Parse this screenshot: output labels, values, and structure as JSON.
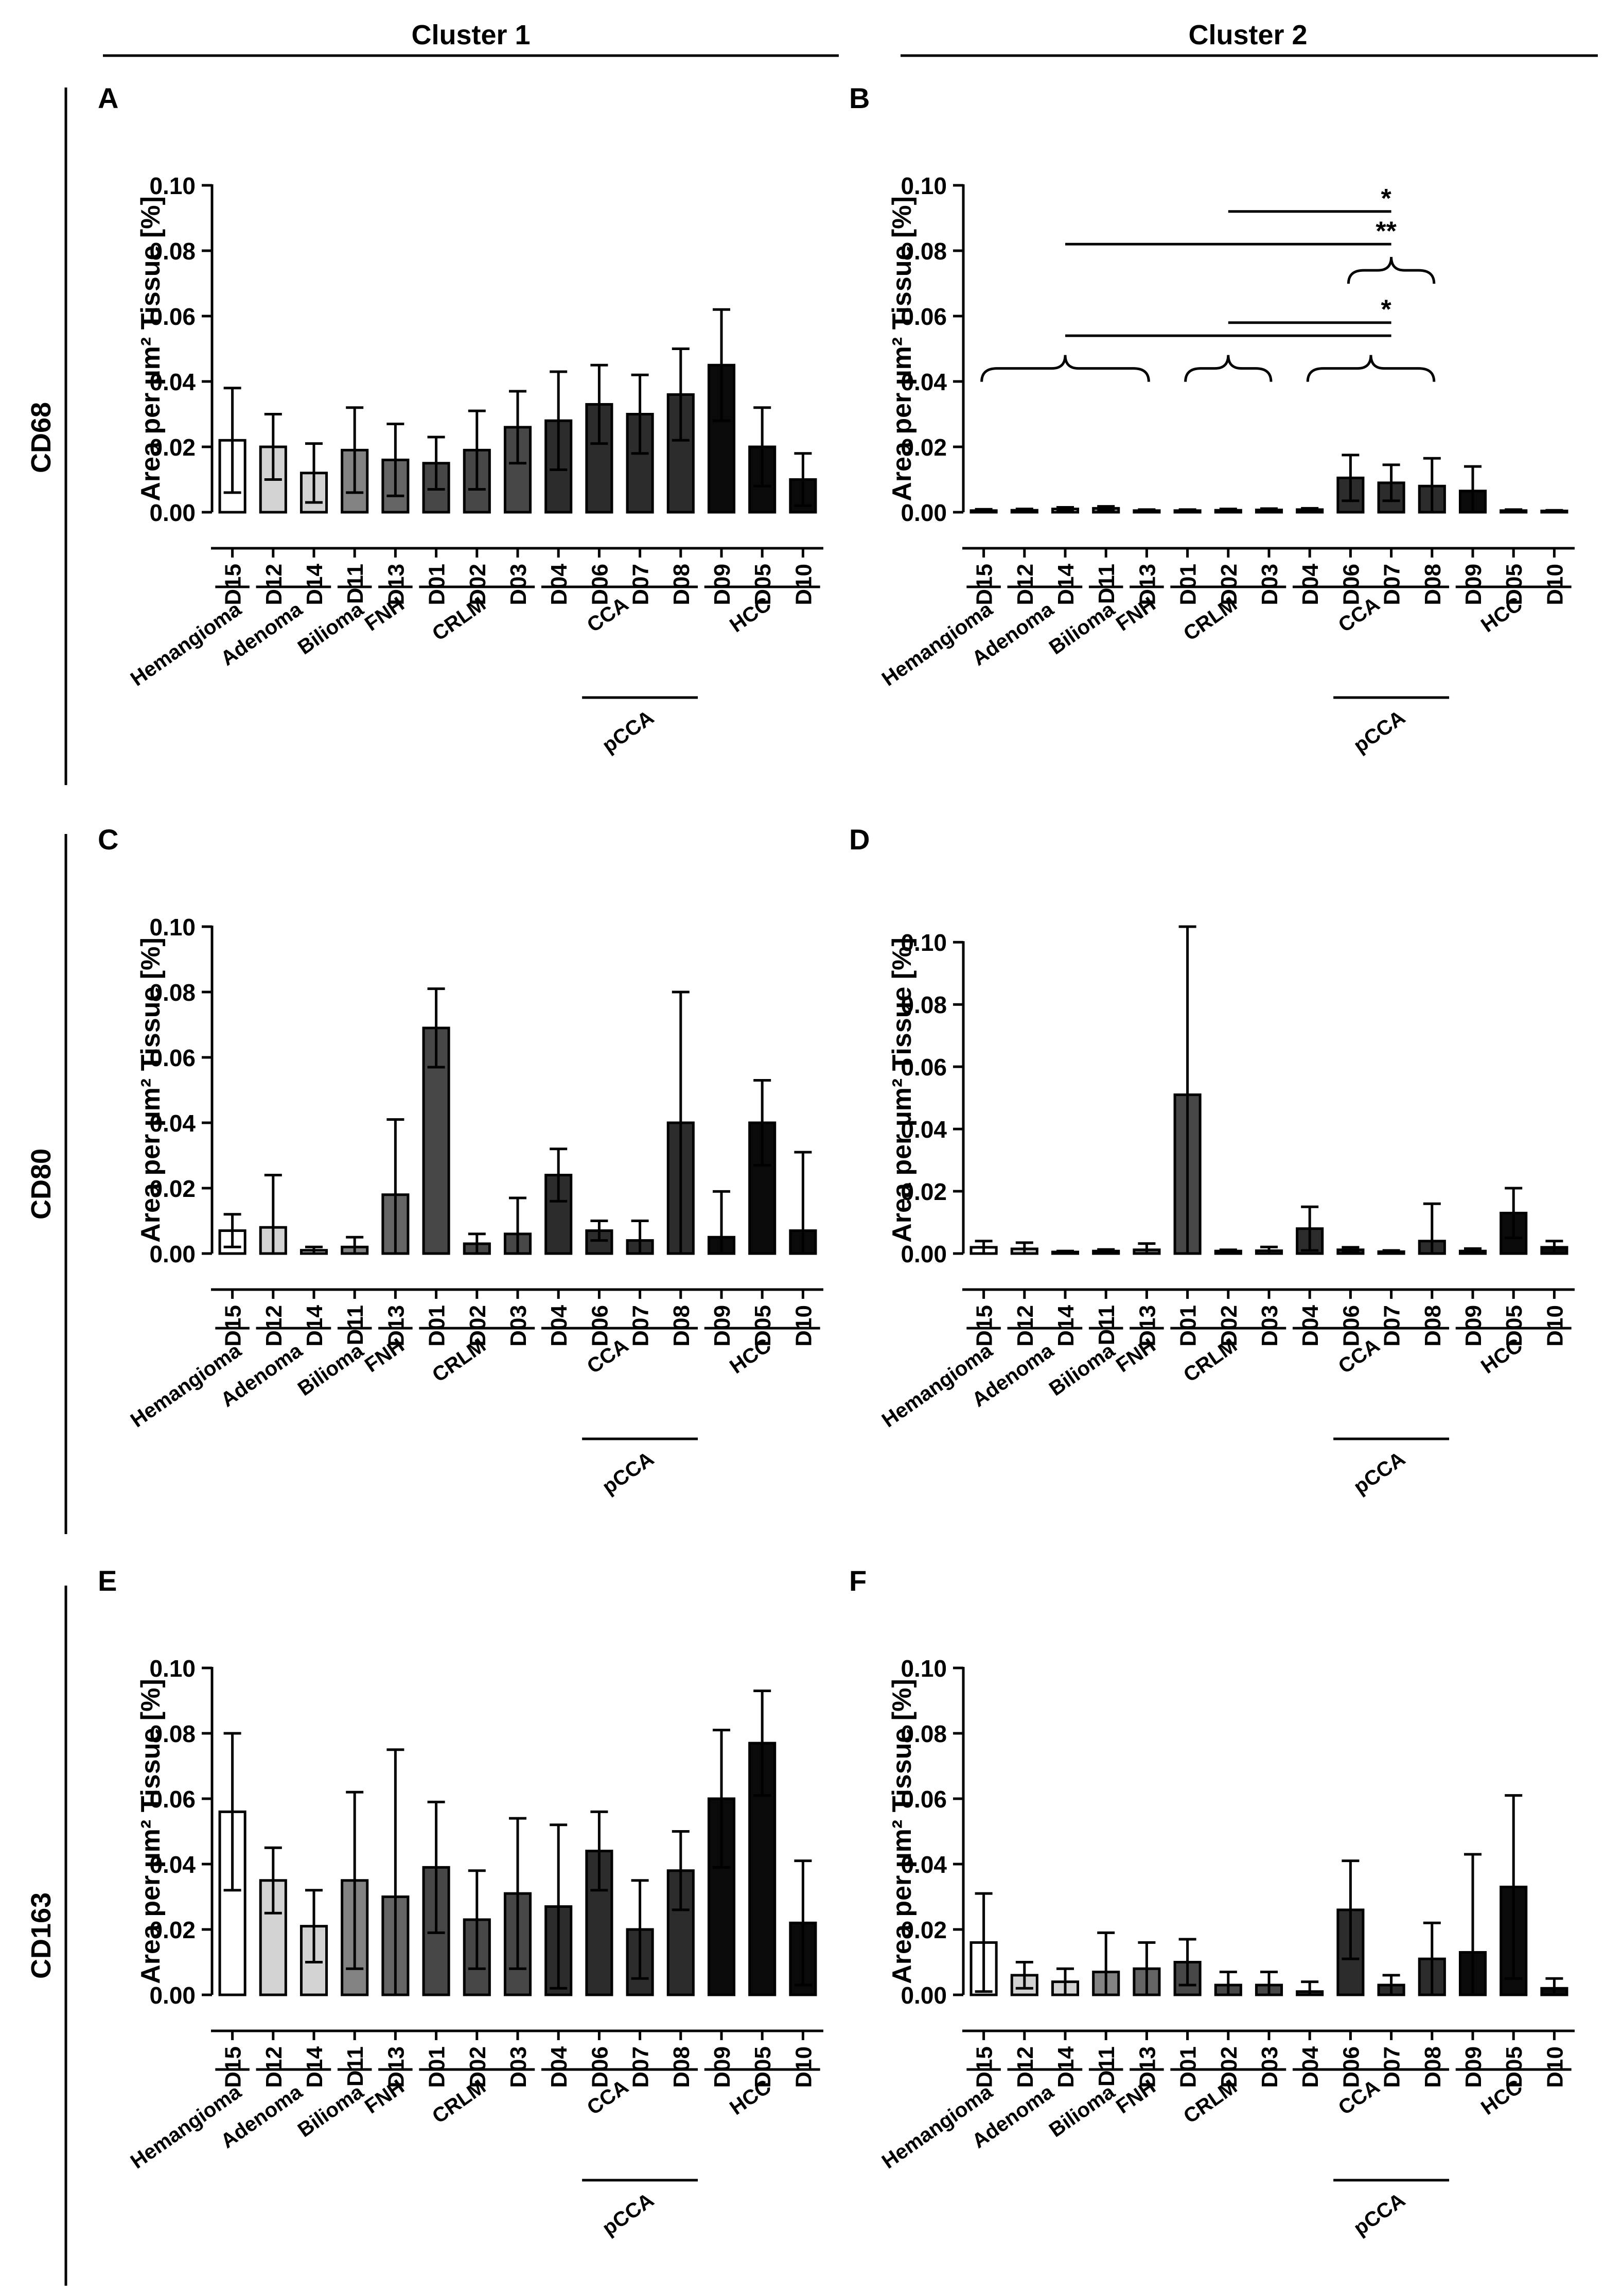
{
  "columns": [
    {
      "label": "Cluster 1"
    },
    {
      "label": "Cluster 2"
    }
  ],
  "rows": [
    {
      "label": "CD68"
    },
    {
      "label": "CD80"
    },
    {
      "label": "CD163"
    }
  ],
  "samples": [
    "D15",
    "D12",
    "D14",
    "D11",
    "D13",
    "D01",
    "D02",
    "D03",
    "D04",
    "D06",
    "D07",
    "D08",
    "D09",
    "D05",
    "D10"
  ],
  "bar_fill_by_sample": [
    "#ffffff",
    "#d2d2d2",
    "#d2d2d2",
    "#828282",
    "#646464",
    "#474747",
    "#474747",
    "#474747",
    "#2c2c2c",
    "#2c2c2c",
    "#2c2c2c",
    "#2c2c2c",
    "#0a0a0a",
    "#0a0a0a",
    "#0a0a0a"
  ],
  "groups": [
    {
      "label": "Hemangioma",
      "from": 0,
      "to": 0
    },
    {
      "label": "Adenoma",
      "from": 1,
      "to": 2
    },
    {
      "label": "Bilioma",
      "from": 3,
      "to": 3
    },
    {
      "label": "FNH",
      "from": 4,
      "to": 4
    },
    {
      "label": "CRLM",
      "from": 5,
      "to": 7
    },
    {
      "label": "CCA",
      "from": 8,
      "to": 11
    },
    {
      "label": "HCC",
      "from": 12,
      "to": 14
    }
  ],
  "subgroups": [
    {
      "label": "pCCA",
      "from": 9,
      "to": 11
    }
  ],
  "chart_data": [
    {
      "panel": "A",
      "type": "bar",
      "marker": "CD68",
      "cluster": "Cluster 1",
      "ylabel": "Area per µm² Tissue [%]",
      "ylim": [
        0,
        0.1
      ],
      "yticks": [
        "0.00",
        "0.02",
        "0.04",
        "0.06",
        "0.08",
        "0.10"
      ],
      "categories": [
        "D15",
        "D12",
        "D14",
        "D11",
        "D13",
        "D01",
        "D02",
        "D03",
        "D04",
        "D06",
        "D07",
        "D08",
        "D09",
        "D05",
        "D10"
      ],
      "values": [
        0.022,
        0.02,
        0.012,
        0.019,
        0.016,
        0.015,
        0.019,
        0.026,
        0.028,
        0.033,
        0.03,
        0.036,
        0.045,
        0.02,
        0.01
      ],
      "errors": [
        0.016,
        0.01,
        0.009,
        0.013,
        0.011,
        0.008,
        0.012,
        0.011,
        0.015,
        0.012,
        0.012,
        0.014,
        0.017,
        0.012,
        0.008
      ],
      "brackets": [],
      "significance": []
    },
    {
      "panel": "B",
      "type": "bar",
      "marker": "CD68",
      "cluster": "Cluster 2",
      "ylabel": "Area per µm² Tissue [%]",
      "ylim": [
        0,
        0.1
      ],
      "yticks": [
        "0.00",
        "0.02",
        "0.04",
        "0.06",
        "0.08",
        "0.10"
      ],
      "categories": [
        "D15",
        "D12",
        "D14",
        "D11",
        "D13",
        "D01",
        "D02",
        "D03",
        "D04",
        "D06",
        "D07",
        "D08",
        "D09",
        "D05",
        "D10"
      ],
      "values": [
        0.0005,
        0.0006,
        0.001,
        0.0012,
        0.0005,
        0.0005,
        0.0006,
        0.0007,
        0.0008,
        0.0105,
        0.009,
        0.008,
        0.0065,
        0.0005,
        0.0004
      ],
      "errors": [
        0.0004,
        0.0004,
        0.0005,
        0.0006,
        0.0003,
        0.0003,
        0.0004,
        0.0004,
        0.0004,
        0.007,
        0.0055,
        0.0085,
        0.0075,
        0.0003,
        0.0002
      ],
      "brackets": [
        {
          "from": 0,
          "to": 4,
          "y": 0.044
        },
        {
          "from": 5,
          "to": 7,
          "y": 0.044
        },
        {
          "from": 8,
          "to": 11,
          "y": 0.044
        },
        {
          "from": 9,
          "to": 11,
          "y": 0.074
        }
      ],
      "significance": [
        {
          "label": "*",
          "from": 6,
          "to": 10,
          "y": 0.092
        },
        {
          "label": "**",
          "from": 2,
          "to": 10,
          "y": 0.082
        },
        {
          "label": "*",
          "from": 6,
          "to": 10,
          "y": 0.058
        },
        {
          "label": "",
          "from": 2,
          "to": 10,
          "y": 0.054
        }
      ]
    },
    {
      "panel": "C",
      "type": "bar",
      "marker": "CD80",
      "cluster": "Cluster 1",
      "ylabel": "Area per µm² Tissue [%]",
      "ylim": [
        0,
        0.1
      ],
      "yticks": [
        "0.00",
        "0.02",
        "0.04",
        "0.06",
        "0.08",
        "0.10"
      ],
      "categories": [
        "D15",
        "D12",
        "D14",
        "D11",
        "D13",
        "D01",
        "D02",
        "D03",
        "D04",
        "D06",
        "D07",
        "D08",
        "D09",
        "D05",
        "D10"
      ],
      "values": [
        0.007,
        0.008,
        0.001,
        0.002,
        0.018,
        0.069,
        0.003,
        0.006,
        0.024,
        0.007,
        0.004,
        0.04,
        0.005,
        0.04,
        0.007
      ],
      "errors": [
        0.005,
        0.016,
        0.001,
        0.003,
        0.023,
        0.012,
        0.003,
        0.011,
        0.008,
        0.003,
        0.006,
        0.04,
        0.014,
        0.013,
        0.024
      ],
      "brackets": [],
      "significance": []
    },
    {
      "panel": "D",
      "type": "bar",
      "marker": "CD80",
      "cluster": "Cluster 2",
      "ylabel": "Area per µm² Tissue [%]",
      "ylim": [
        0,
        0.105
      ],
      "yticks": [
        "0.00",
        "0.02",
        "0.04",
        "0.06",
        "0.08",
        "0.10"
      ],
      "categories": [
        "D15",
        "D12",
        "D14",
        "D11",
        "D13",
        "D01",
        "D02",
        "D03",
        "D04",
        "D06",
        "D07",
        "D08",
        "D09",
        "D05",
        "D10"
      ],
      "values": [
        0.002,
        0.0015,
        0.0005,
        0.0008,
        0.0012,
        0.051,
        0.0008,
        0.0009,
        0.008,
        0.0012,
        0.0006,
        0.004,
        0.0008,
        0.013,
        0.002
      ],
      "errors": [
        0.002,
        0.002,
        0.0003,
        0.0005,
        0.002,
        0.054,
        0.0004,
        0.0012,
        0.007,
        0.0008,
        0.0004,
        0.012,
        0.0008,
        0.008,
        0.002
      ],
      "brackets": [],
      "significance": []
    },
    {
      "panel": "E",
      "type": "bar",
      "marker": "CD163",
      "cluster": "Cluster 1",
      "ylabel": "Area per µm² Tissue [%]",
      "ylim": [
        0,
        0.1
      ],
      "yticks": [
        "0.00",
        "0.02",
        "0.04",
        "0.06",
        "0.08",
        "0.10"
      ],
      "categories": [
        "D15",
        "D12",
        "D14",
        "D11",
        "D13",
        "D01",
        "D02",
        "D03",
        "D04",
        "D06",
        "D07",
        "D08",
        "D09",
        "D05",
        "D10"
      ],
      "values": [
        0.056,
        0.035,
        0.021,
        0.035,
        0.03,
        0.039,
        0.023,
        0.031,
        0.027,
        0.044,
        0.02,
        0.038,
        0.06,
        0.077,
        0.022
      ],
      "errors": [
        0.024,
        0.01,
        0.011,
        0.027,
        0.045,
        0.02,
        0.015,
        0.023,
        0.025,
        0.012,
        0.015,
        0.012,
        0.021,
        0.016,
        0.019
      ],
      "brackets": [],
      "significance": []
    },
    {
      "panel": "F",
      "type": "bar",
      "marker": "CD163",
      "cluster": "Cluster 2",
      "ylabel": "Area per µm² Tissue [%]",
      "ylim": [
        0,
        0.1
      ],
      "yticks": [
        "0.00",
        "0.02",
        "0.04",
        "0.06",
        "0.08",
        "0.10"
      ],
      "categories": [
        "D15",
        "D12",
        "D14",
        "D11",
        "D13",
        "D01",
        "D02",
        "D03",
        "D04",
        "D06",
        "D07",
        "D08",
        "D09",
        "D05",
        "D10"
      ],
      "values": [
        0.016,
        0.006,
        0.004,
        0.007,
        0.008,
        0.01,
        0.003,
        0.003,
        0.001,
        0.026,
        0.003,
        0.011,
        0.013,
        0.033,
        0.002
      ],
      "errors": [
        0.015,
        0.004,
        0.004,
        0.012,
        0.008,
        0.007,
        0.004,
        0.004,
        0.003,
        0.015,
        0.003,
        0.011,
        0.03,
        0.028,
        0.003
      ],
      "brackets": [],
      "significance": []
    }
  ]
}
